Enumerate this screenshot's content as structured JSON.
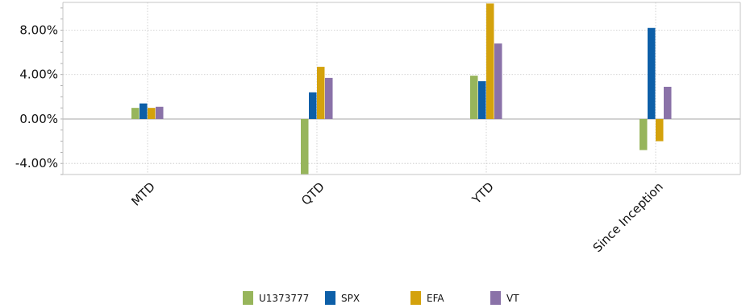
{
  "chart_data": {
    "type": "bar",
    "categories": [
      "MTD",
      "QTD",
      "YTD",
      "Since Inception"
    ],
    "y_tick_labels": [
      "-4.00%",
      "0.00%",
      "4.00%",
      "8.00%"
    ],
    "y_ticks": [
      -4,
      0,
      4,
      8
    ],
    "ylim": [
      -5,
      10.5
    ],
    "grid": true,
    "legend_position": "bottom",
    "series": [
      {
        "name": "U1373777",
        "color": "#97b55b",
        "values": [
          1.0,
          -5.0,
          3.9,
          -2.8
        ]
      },
      {
        "name": "SPX",
        "color": "#0d5fa8",
        "values": [
          1.4,
          2.4,
          3.4,
          8.2
        ]
      },
      {
        "name": "EFA",
        "color": "#d4a20c",
        "values": [
          1.0,
          4.7,
          10.4,
          -2.0
        ]
      },
      {
        "name": "VT",
        "color": "#8a72a8",
        "values": [
          1.1,
          3.7,
          6.8,
          2.9
        ]
      }
    ]
  }
}
